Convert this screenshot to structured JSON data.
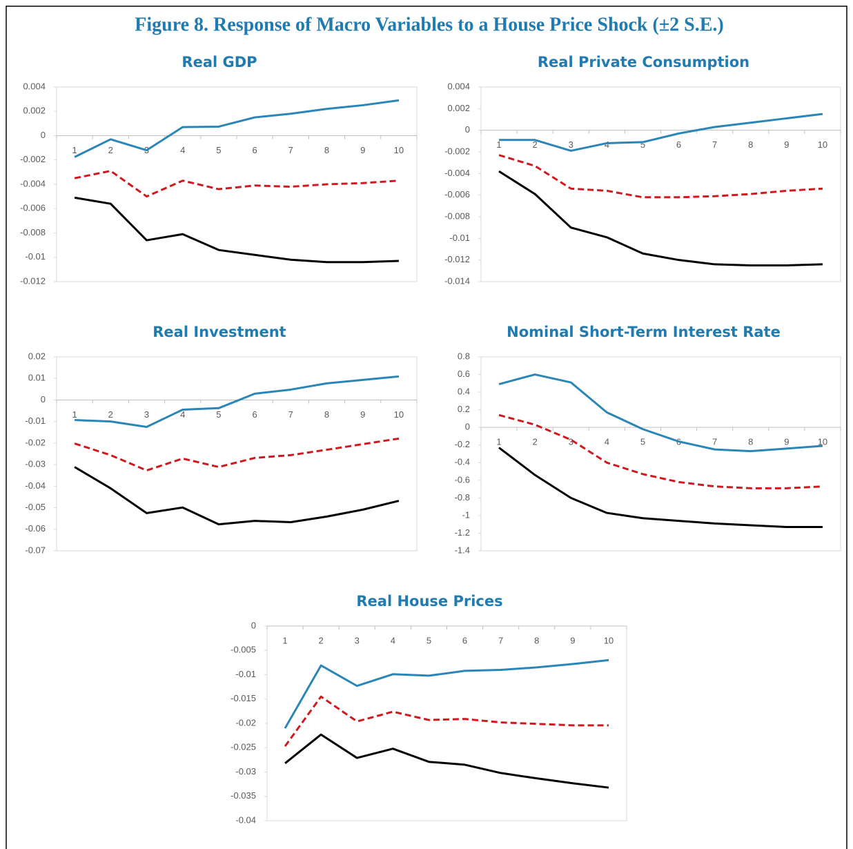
{
  "title": "Figure 8. Response of Macro Variables to a House Price Shock (±2 S.E.)",
  "chart_data": [
    {
      "type": "line",
      "title": "Real GDP",
      "categories": [
        "1",
        "2",
        "3",
        "4",
        "5",
        "6",
        "7",
        "8",
        "9",
        "10"
      ],
      "ylim": [
        -0.012,
        0.004
      ],
      "yticks": [
        0.004,
        0.002,
        0,
        -0.002,
        -0.004,
        -0.006,
        -0.008,
        -0.01,
        -0.012
      ],
      "series": [
        {
          "color": "#2a86b6",
          "line_style": "solid",
          "values": [
            -0.00176,
            -0.0003,
            -0.0012,
            0.0007,
            0.00074,
            0.0015,
            0.0018,
            0.0022,
            0.0025,
            0.0029
          ]
        },
        {
          "color": "#d0191e",
          "line_style": "dashed",
          "values": [
            -0.0035,
            -0.0029,
            -0.005,
            -0.0037,
            -0.0044,
            -0.0041,
            -0.0042,
            -0.004,
            -0.0039,
            -0.0037
          ]
        },
        {
          "color": "#000000",
          "line_style": "solid",
          "values": [
            -0.0051,
            -0.0056,
            -0.0086,
            -0.0081,
            -0.0094,
            -0.0098,
            -0.0102,
            -0.0104,
            -0.0104,
            -0.0103
          ]
        }
      ]
    },
    {
      "type": "line",
      "title": "Real Private Consumption",
      "categories": [
        "1",
        "2",
        "3",
        "4",
        "5",
        "6",
        "7",
        "8",
        "9",
        "10"
      ],
      "ylim": [
        -0.014,
        0.004
      ],
      "yticks": [
        0.004,
        0.002,
        0,
        -0.002,
        -0.004,
        -0.006,
        -0.008,
        -0.01,
        -0.012,
        -0.014
      ],
      "series": [
        {
          "color": "#2a86b6",
          "line_style": "solid",
          "values": [
            -0.0009,
            -0.0009,
            -0.0019,
            -0.0012,
            -0.0011,
            -0.0003,
            0.0003,
            0.0007,
            0.0011,
            0.0015
          ]
        },
        {
          "color": "#d0191e",
          "line_style": "dashed",
          "values": [
            -0.0023,
            -0.0033,
            -0.0054,
            -0.0056,
            -0.0062,
            -0.0062,
            -0.0061,
            -0.0059,
            -0.0056,
            -0.0054
          ]
        },
        {
          "color": "#000000",
          "line_style": "solid",
          "values": [
            -0.0038,
            -0.0059,
            -0.009,
            -0.0099,
            -0.0114,
            -0.012,
            -0.0124,
            -0.0125,
            -0.0125,
            -0.0124
          ]
        }
      ]
    },
    {
      "type": "line",
      "title": "Real Investment",
      "categories": [
        "1",
        "2",
        "3",
        "4",
        "5",
        "6",
        "7",
        "8",
        "9",
        "10"
      ],
      "ylim": [
        -0.07,
        0.02
      ],
      "yticks": [
        0.02,
        0.01,
        0,
        -0.01,
        -0.02,
        -0.03,
        -0.04,
        -0.05,
        -0.06,
        -0.07
      ],
      "series": [
        {
          "color": "#2a86b6",
          "line_style": "solid",
          "values": [
            -0.0093,
            -0.01,
            -0.0125,
            -0.0045,
            -0.0038,
            0.0029,
            0.0048,
            0.0077,
            0.0093,
            0.0109
          ]
        },
        {
          "color": "#d0191e",
          "line_style": "dashed",
          "values": [
            -0.0202,
            -0.0256,
            -0.0327,
            -0.0272,
            -0.0311,
            -0.0269,
            -0.0256,
            -0.0231,
            -0.0205,
            -0.0179
          ]
        },
        {
          "color": "#000000",
          "line_style": "solid",
          "values": [
            -0.0311,
            -0.041,
            -0.0525,
            -0.0499,
            -0.0577,
            -0.0561,
            -0.0567,
            -0.0541,
            -0.0509,
            -0.0468
          ]
        }
      ]
    },
    {
      "type": "line",
      "title": "Nominal Short-Term Interest Rate",
      "categories": [
        "1",
        "2",
        "3",
        "4",
        "5",
        "6",
        "7",
        "8",
        "9",
        "10"
      ],
      "ylim": [
        -1.4,
        0.8
      ],
      "yticks": [
        0.8,
        0.6,
        0.4,
        0.2,
        0,
        -0.2,
        -0.4,
        -0.6,
        -0.8,
        -1,
        -1.2,
        -1.4
      ],
      "series": [
        {
          "color": "#2a86b6",
          "line_style": "solid",
          "values": [
            0.49,
            0.6,
            0.51,
            0.17,
            -0.02,
            -0.16,
            -0.25,
            -0.27,
            -0.24,
            -0.21
          ]
        },
        {
          "color": "#d0191e",
          "line_style": "dashed",
          "values": [
            0.14,
            0.03,
            -0.14,
            -0.4,
            -0.53,
            -0.62,
            -0.67,
            -0.69,
            -0.69,
            -0.67
          ]
        },
        {
          "color": "#000000",
          "line_style": "solid",
          "values": [
            -0.23,
            -0.54,
            -0.8,
            -0.97,
            -1.03,
            -1.06,
            -1.09,
            -1.11,
            -1.13,
            -1.13
          ]
        }
      ]
    },
    {
      "type": "line",
      "title": "Real House Prices",
      "categories": [
        "1",
        "2",
        "3",
        "4",
        "5",
        "6",
        "7",
        "8",
        "9",
        "10"
      ],
      "ylim": [
        -0.04,
        0
      ],
      "yticks": [
        0,
        -0.005,
        -0.01,
        -0.015,
        -0.02,
        -0.025,
        -0.03,
        -0.035,
        -0.04
      ],
      "series": [
        {
          "color": "#2a86b6",
          "line_style": "solid",
          "values": [
            -0.021,
            -0.0081,
            -0.0123,
            -0.0099,
            -0.0102,
            -0.0092,
            -0.009,
            -0.0085,
            -0.0078,
            -0.007
          ]
        },
        {
          "color": "#d0191e",
          "line_style": "dashed",
          "values": [
            -0.0247,
            -0.0145,
            -0.0196,
            -0.0176,
            -0.0193,
            -0.0191,
            -0.0198,
            -0.0201,
            -0.0204,
            -0.0204
          ]
        },
        {
          "color": "#000000",
          "line_style": "solid",
          "values": [
            -0.0282,
            -0.0223,
            -0.0271,
            -0.0252,
            -0.0279,
            -0.0285,
            -0.0302,
            -0.0313,
            -0.0323,
            -0.0332
          ]
        }
      ]
    }
  ]
}
